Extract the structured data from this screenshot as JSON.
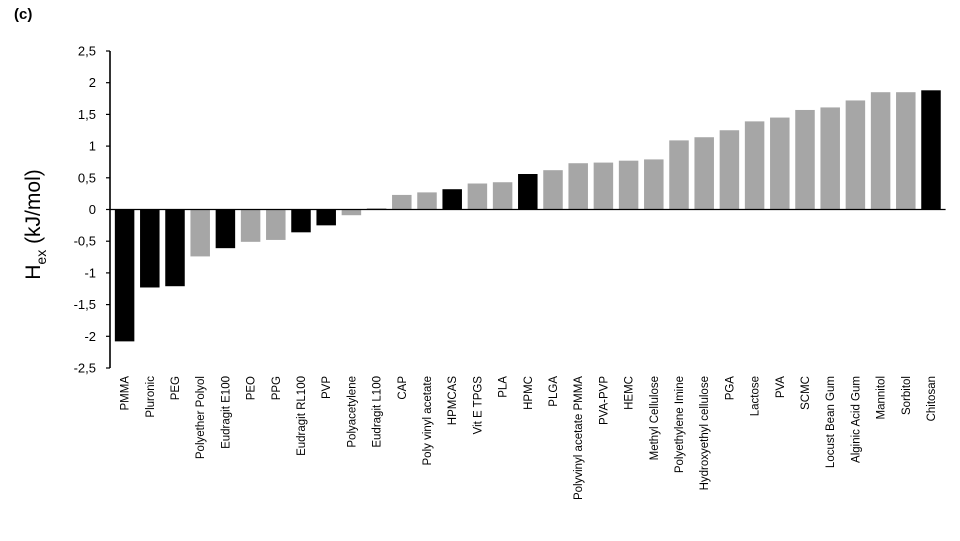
{
  "panel_label": "(c)",
  "chart_data": {
    "type": "bar",
    "title": "",
    "xlabel": "",
    "ylabel_main": "H",
    "ylabel_sub": "ex",
    "ylabel_unit": " (kJ/mol)",
    "ylim": [
      -2.5,
      2.5
    ],
    "yticks": [
      2.5,
      2,
      1.5,
      1,
      0.5,
      0,
      -0.5,
      -1,
      -1.5,
      -2,
      -2.5
    ],
    "ytick_labels": [
      "2,5",
      "2",
      "1,5",
      "1",
      "0,5",
      "0",
      "-0,5",
      "-1",
      "-1,5",
      "-2",
      "-2,5"
    ],
    "grid": false,
    "legend": "none",
    "colors": {
      "highlight": "#000000",
      "default": "#a6a6a6"
    },
    "categories": [
      "PMMA",
      "Pluronic",
      "PEG",
      "Polyether Polyol",
      "Eudragit E100",
      "PEO",
      "PPG",
      "Eudragit RL100",
      "PVP",
      "Polyacetylene",
      "Eudragit L100",
      "CAP",
      "Poly vinyl acetate",
      "HPMCAS",
      "Vit E TPGS",
      "PLA",
      "HPMC",
      "PLGA",
      "Polyvinyl acetate PMMA",
      "PVA-PVP",
      "HEMC",
      "Methyl Cellulose",
      "Polyethylene Imine",
      "Hydroxyethyl cellulose",
      "PGA",
      "Lactose",
      "PVA",
      "SCMC",
      "Locust Bean Gum",
      "Alginic Acid Gum",
      "Mannitol",
      "Sorbitol",
      "Chitosan"
    ],
    "values": [
      -2.08,
      -1.23,
      -1.21,
      -0.74,
      -0.61,
      -0.51,
      -0.48,
      -0.36,
      -0.25,
      -0.09,
      0.02,
      0.23,
      0.27,
      0.32,
      0.41,
      0.43,
      0.56,
      0.62,
      0.73,
      0.74,
      0.77,
      0.79,
      1.09,
      1.14,
      1.25,
      1.39,
      1.45,
      1.57,
      1.61,
      1.72,
      1.85,
      1.85,
      1.88
    ],
    "highlighted": [
      true,
      true,
      true,
      false,
      true,
      false,
      false,
      true,
      true,
      false,
      false,
      false,
      false,
      true,
      false,
      false,
      true,
      false,
      false,
      false,
      false,
      false,
      false,
      false,
      false,
      false,
      false,
      false,
      false,
      false,
      false,
      false,
      true
    ]
  }
}
